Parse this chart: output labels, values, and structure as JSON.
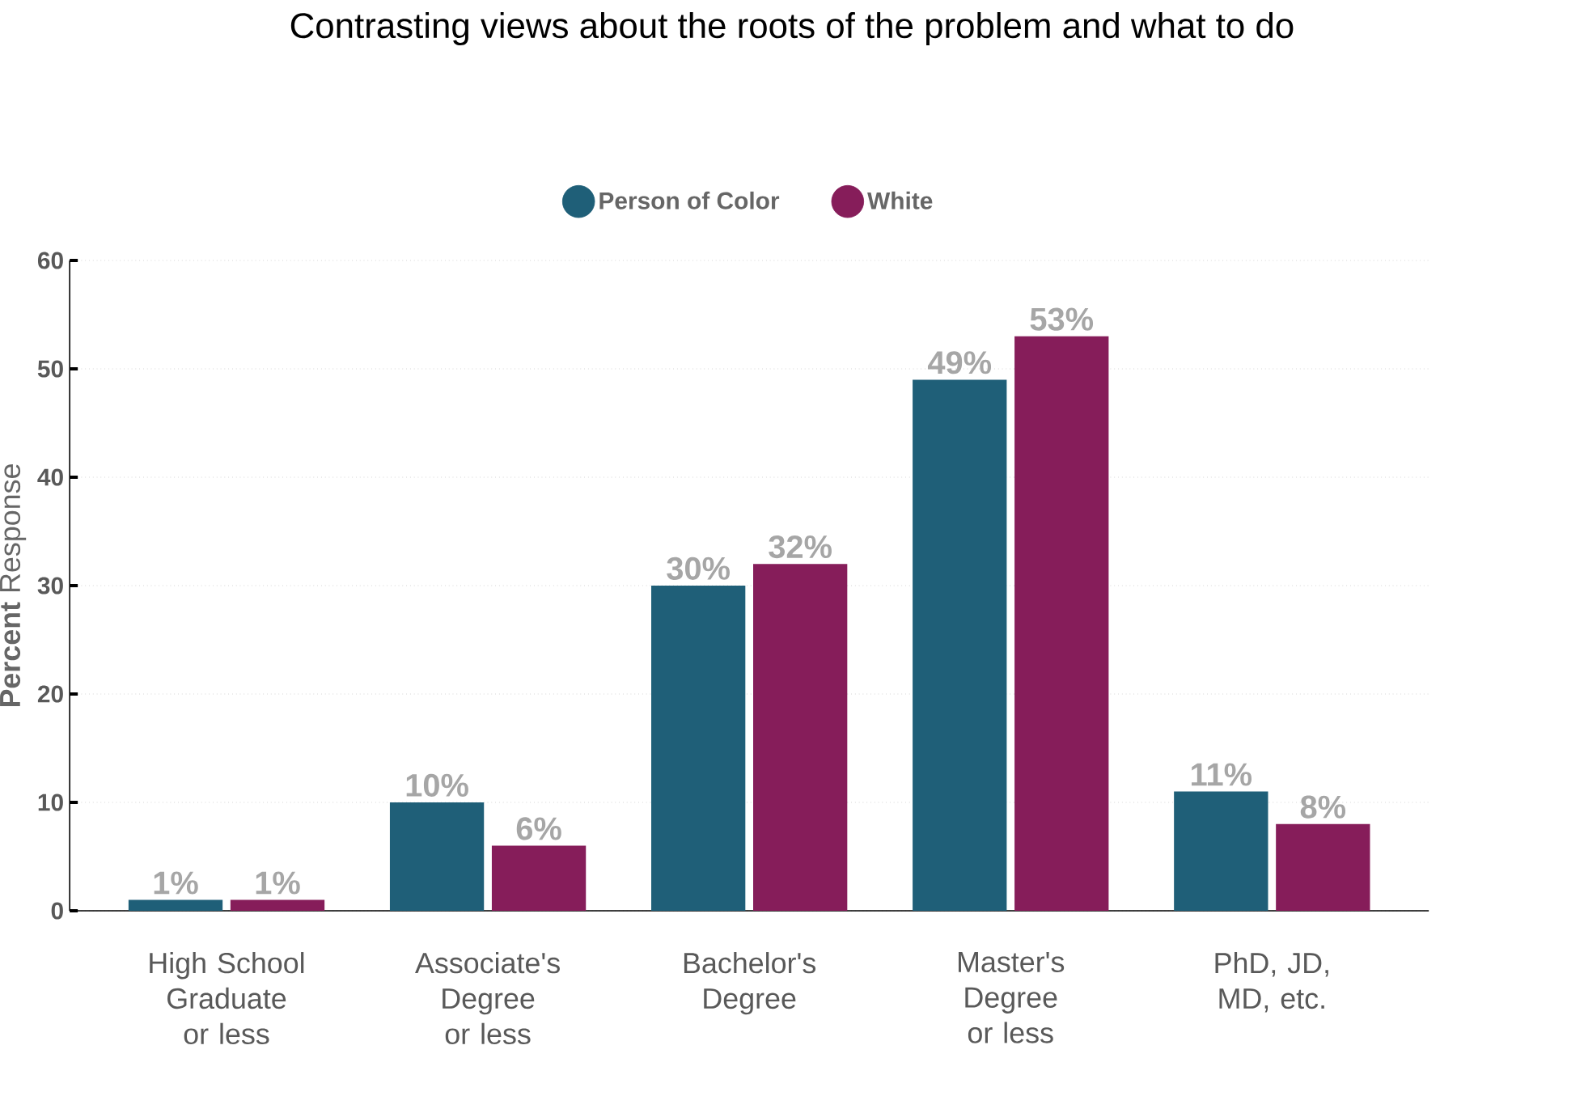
{
  "chart_data": {
    "type": "bar",
    "title": "Contrasting views about the roots of the problem and what to do",
    "ylabel": "**Percent** Response",
    "categories": [
      "High School Graduate or less",
      "Associate's Degree or less",
      "Bachelor's Degree",
      "Master's Degree or less",
      "PhD, JD, MD, etc."
    ],
    "series": [
      {
        "name": "Person of Color",
        "color": "#1f5f78",
        "values": [
          1,
          10,
          30,
          49,
          11
        ],
        "value_labels": [
          "1%",
          "10%",
          "30%",
          "49%",
          "11%"
        ]
      },
      {
        "name": "White",
        "color": "#861d5a",
        "values": [
          1,
          6,
          32,
          53,
          8
        ],
        "value_labels": [
          "1%",
          "6%",
          "32%",
          "53%",
          "8%"
        ]
      }
    ],
    "ylim": [
      0,
      60
    ],
    "yticks": [
      0,
      10,
      20,
      30,
      40,
      50,
      60
    ],
    "grid": "y",
    "legend": "top"
  }
}
